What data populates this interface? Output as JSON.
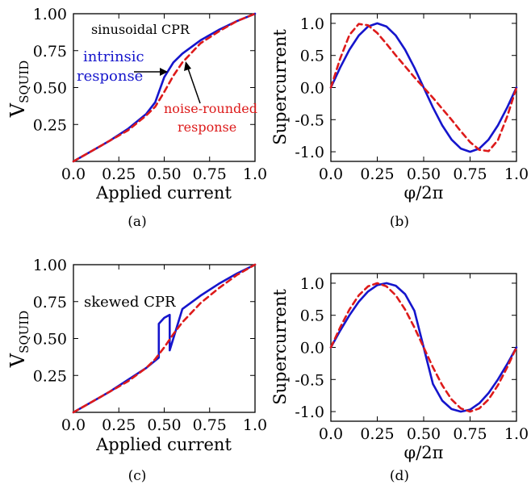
{
  "colors": {
    "intrinsic": "#1515cc",
    "noise": "#dd1a1a",
    "axis": "#000000"
  },
  "chart_data": [
    {
      "type": "line",
      "panel": "(a)",
      "xlabel": "Applied current",
      "ylabel_main": "V",
      "ylabel_sub": "SQUID",
      "xlim": [
        0,
        1
      ],
      "ylim": [
        0,
        1
      ],
      "xticks": [
        "0.0",
        "0.25",
        "0.50",
        "0.75",
        "1.0"
      ],
      "yticks": [
        "0.25",
        "0.50",
        "0.75",
        "1.00"
      ],
      "ytick_values": [
        0.25,
        0.5,
        0.75,
        1.0
      ],
      "annotations": [
        {
          "text": "sinusoidal CPR",
          "color": "#000000"
        },
        {
          "text": "intrinsic",
          "color": "#1515cc"
        },
        {
          "text": "response",
          "color": "#1515cc"
        },
        {
          "text": "noise-rounded",
          "color": "#dd1a1a"
        },
        {
          "text": "response",
          "color": "#dd1a1a"
        }
      ],
      "series": [
        {
          "style": "solid",
          "color": "#1515cc",
          "x": [
            0,
            0.1,
            0.2,
            0.3,
            0.4,
            0.45,
            0.5,
            0.55,
            0.6,
            0.7,
            0.8,
            0.9,
            1.0
          ],
          "y": [
            0,
            0.07,
            0.14,
            0.22,
            0.32,
            0.4,
            0.57,
            0.67,
            0.73,
            0.82,
            0.89,
            0.95,
            1.0
          ]
        },
        {
          "style": "dashed",
          "color": "#dd1a1a",
          "x": [
            0,
            0.1,
            0.2,
            0.3,
            0.4,
            0.45,
            0.5,
            0.55,
            0.6,
            0.7,
            0.8,
            0.9,
            1.0
          ],
          "y": [
            0,
            0.07,
            0.14,
            0.21,
            0.31,
            0.37,
            0.47,
            0.58,
            0.67,
            0.8,
            0.88,
            0.95,
            1.0
          ]
        }
      ]
    },
    {
      "type": "line",
      "panel": "(b)",
      "xlabel": "φ/2π",
      "ylabel": "Supercurrent",
      "xlim": [
        0,
        1
      ],
      "ylim": [
        -1.15,
        1.15
      ],
      "xticks": [
        "0.0",
        "0.25",
        "0.50",
        "0.75",
        "1.0"
      ],
      "yticks": [
        "1.0",
        "0.5",
        "0.0",
        "-0.5",
        "-1.0"
      ],
      "ytick_values": [
        1.0,
        0.5,
        0.0,
        -0.5,
        -1.0
      ],
      "series": [
        {
          "style": "solid",
          "color": "#1515cc",
          "x": [
            0,
            0.05,
            0.1,
            0.15,
            0.2,
            0.25,
            0.3,
            0.35,
            0.4,
            0.45,
            0.5,
            0.55,
            0.6,
            0.65,
            0.7,
            0.75,
            0.8,
            0.85,
            0.9,
            0.95,
            1.0
          ],
          "y": [
            0,
            0.31,
            0.59,
            0.81,
            0.95,
            1.0,
            0.95,
            0.81,
            0.59,
            0.31,
            0,
            -0.31,
            -0.59,
            -0.81,
            -0.95,
            -1.0,
            -0.95,
            -0.81,
            -0.59,
            -0.31,
            0
          ]
        },
        {
          "style": "dashed",
          "color": "#dd1a1a",
          "x": [
            0,
            0.05,
            0.1,
            0.15,
            0.2,
            0.25,
            0.3,
            0.35,
            0.4,
            0.45,
            0.5,
            0.55,
            0.6,
            0.65,
            0.7,
            0.75,
            0.8,
            0.85,
            0.9,
            0.95,
            1.0
          ],
          "y": [
            0,
            0.45,
            0.82,
            0.99,
            0.97,
            0.85,
            0.68,
            0.5,
            0.33,
            0.16,
            0,
            -0.16,
            -0.33,
            -0.5,
            -0.68,
            -0.85,
            -0.97,
            -0.99,
            -0.82,
            -0.45,
            0
          ]
        }
      ]
    },
    {
      "type": "line",
      "panel": "(c)",
      "xlabel": "Applied current",
      "ylabel_main": "V",
      "ylabel_sub": "SQUID",
      "xlim": [
        0,
        1
      ],
      "ylim": [
        0,
        1
      ],
      "xticks": [
        "0.0",
        "0.25",
        "0.50",
        "0.75",
        "1.0"
      ],
      "yticks": [
        "0.25",
        "0.50",
        "0.75",
        "1.00"
      ],
      "ytick_values": [
        0.25,
        0.5,
        0.75,
        1.0
      ],
      "annotations": [
        {
          "text": "skewed CPR",
          "color": "#000000"
        }
      ],
      "series": [
        {
          "style": "solid",
          "color": "#1515cc",
          "x": [
            0,
            0.1,
            0.2,
            0.3,
            0.4,
            0.47,
            0.47,
            0.47,
            0.5,
            0.53,
            0.53,
            0.53,
            0.6,
            0.7,
            0.8,
            0.9,
            1.0
          ],
          "y": [
            0,
            0.07,
            0.14,
            0.22,
            0.3,
            0.37,
            0.5,
            0.6,
            0.64,
            0.66,
            0.55,
            0.42,
            0.7,
            0.79,
            0.87,
            0.94,
            1.0
          ]
        },
        {
          "style": "dashed",
          "color": "#dd1a1a",
          "x": [
            0,
            0.1,
            0.2,
            0.3,
            0.4,
            0.45,
            0.5,
            0.55,
            0.6,
            0.7,
            0.8,
            0.9,
            1.0
          ],
          "y": [
            0,
            0.07,
            0.14,
            0.21,
            0.3,
            0.36,
            0.44,
            0.53,
            0.61,
            0.74,
            0.84,
            0.93,
            1.0
          ]
        }
      ]
    },
    {
      "type": "line",
      "panel": "(d)",
      "xlabel": "φ/2π",
      "ylabel": "Supercurrent",
      "xlim": [
        0,
        1
      ],
      "ylim": [
        -1.15,
        1.15
      ],
      "xticks": [
        "0.0",
        "0.25",
        "0.50",
        "0.75",
        "1.0"
      ],
      "yticks": [
        "1.0",
        "0.5",
        "0.0",
        "-0.5",
        "-1.0"
      ],
      "ytick_values": [
        1.0,
        0.5,
        0.0,
        -0.5,
        -1.0
      ],
      "series": [
        {
          "style": "solid",
          "color": "#1515cc",
          "x": [
            0,
            0.05,
            0.1,
            0.15,
            0.2,
            0.25,
            0.3,
            0.35,
            0.4,
            0.45,
            0.5,
            0.55,
            0.6,
            0.65,
            0.7,
            0.75,
            0.8,
            0.85,
            0.9,
            0.95,
            1.0
          ],
          "y": [
            0,
            0.26,
            0.5,
            0.71,
            0.87,
            0.97,
            1.0,
            0.96,
            0.83,
            0.57,
            0,
            -0.57,
            -0.83,
            -0.96,
            -1.0,
            -0.97,
            -0.87,
            -0.71,
            -0.5,
            -0.26,
            0
          ]
        },
        {
          "style": "dashed",
          "color": "#dd1a1a",
          "x": [
            0,
            0.05,
            0.1,
            0.15,
            0.2,
            0.25,
            0.3,
            0.35,
            0.4,
            0.45,
            0.5,
            0.55,
            0.6,
            0.65,
            0.7,
            0.75,
            0.8,
            0.85,
            0.9,
            0.95,
            1.0
          ],
          "y": [
            0,
            0.31,
            0.59,
            0.81,
            0.95,
            1.0,
            0.95,
            0.81,
            0.59,
            0.31,
            0,
            -0.31,
            -0.59,
            -0.81,
            -0.95,
            -1.0,
            -0.95,
            -0.81,
            -0.59,
            -0.31,
            0
          ]
        }
      ]
    }
  ]
}
